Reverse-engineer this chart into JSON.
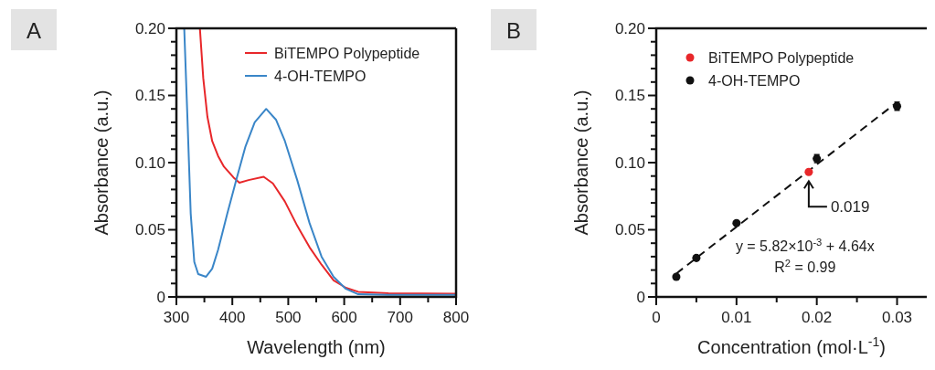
{
  "chart_data": [
    {
      "type": "line",
      "title": "A",
      "xlabel": "Wavelength (nm)",
      "ylabel": "Absorbance (a.u.)",
      "xlim": [
        300,
        800
      ],
      "ylim": [
        0,
        0.2
      ],
      "xticks": [
        300,
        {
          "value": 350,
          "label": null
        },
        400,
        {
          "value": 450,
          "label": null
        },
        500,
        {
          "value": 550,
          "label": null
        },
        600,
        {
          "value": 650,
          "label": null
        },
        700,
        {
          "value": 750,
          "label": null
        },
        800
      ],
      "yticks": [
        0,
        {
          "value": 0.01,
          "label": null
        },
        {
          "value": 0.02,
          "label": null
        },
        {
          "value": 0.03,
          "label": null
        },
        {
          "value": 0.04,
          "label": null
        },
        0.05,
        {
          "value": 0.06,
          "label": null
        },
        {
          "value": 0.07,
          "label": null
        },
        {
          "value": 0.08,
          "label": null
        },
        {
          "value": 0.09,
          "label": null
        },
        {
          "value": 0.1,
          "label": "0.10"
        },
        {
          "value": 0.11,
          "label": null
        },
        {
          "value": 0.12,
          "label": null
        },
        {
          "value": 0.13,
          "label": null
        },
        {
          "value": 0.14,
          "label": null
        },
        0.15,
        {
          "value": 0.16,
          "label": null
        },
        {
          "value": 0.17,
          "label": null
        },
        {
          "value": 0.18,
          "label": null
        },
        {
          "value": 0.19,
          "label": null
        },
        {
          "value": 0.2,
          "label": "0.20"
        }
      ],
      "legend": "top right",
      "grid": false,
      "series": [
        {
          "name": "BiTEMPO Polypeptide",
          "color": "#e8272a",
          "x": [
            342,
            348,
            355.5,
            364,
            374.5,
            385,
            402,
            412.6,
            429,
            456,
            472.5,
            494,
            516,
            538,
            559.5,
            581,
            603,
            625,
            679,
            800
          ],
          "values": [
            0.2,
            0.163,
            0.134,
            0.116,
            0.105,
            0.097,
            0.089,
            0.085,
            0.087,
            0.0895,
            0.0845,
            0.071,
            0.053,
            0.037,
            0.024,
            0.0124,
            0.0068,
            0.0038,
            0.0027,
            0.0023
          ]
        },
        {
          "name": "4-OH-TEMPO",
          "color": "#3a86c8",
          "x": [
            314,
            320,
            325.6,
            332,
            339,
            353,
            364,
            374.5,
            391,
            407,
            423.5,
            440,
            460.5,
            478,
            494,
            516,
            538,
            559.5,
            581,
            603,
            625,
            679,
            800
          ],
          "values": [
            0.2,
            0.13,
            0.062,
            0.026,
            0.017,
            0.015,
            0.021,
            0.035,
            0.062,
            0.087,
            0.112,
            0.13,
            0.14,
            0.132,
            0.116,
            0.087,
            0.055,
            0.03,
            0.015,
            0.006,
            0.002,
            0.0016,
            0.0016
          ]
        }
      ]
    },
    {
      "type": "scatter",
      "title": "B",
      "xlabel": "Concentration (mol·L$^{-1}$)",
      "ylabel": "Absorbance (a.u.)",
      "xlim": [
        0,
        0.0337
      ],
      "ylim": [
        0,
        0.2
      ],
      "xticks": [
        0,
        {
          "value": 0.005,
          "label": null
        },
        0.01,
        {
          "value": 0.015,
          "label": null
        },
        0.02,
        {
          "value": 0.025,
          "label": null
        },
        0.03
      ],
      "yticks": [
        0,
        {
          "value": 0.01,
          "label": null
        },
        {
          "value": 0.02,
          "label": null
        },
        {
          "value": 0.03,
          "label": null
        },
        {
          "value": 0.04,
          "label": null
        },
        0.05,
        {
          "value": 0.06,
          "label": null
        },
        {
          "value": 0.07,
          "label": null
        },
        {
          "value": 0.08,
          "label": null
        },
        {
          "value": 0.09,
          "label": null
        },
        {
          "value": 0.1,
          "label": "0.10"
        },
        {
          "value": 0.11,
          "label": null
        },
        {
          "value": 0.12,
          "label": null
        },
        {
          "value": 0.13,
          "label": null
        },
        {
          "value": 0.14,
          "label": null
        },
        0.15,
        {
          "value": 0.16,
          "label": null
        },
        {
          "value": 0.17,
          "label": null
        },
        {
          "value": 0.18,
          "label": null
        },
        {
          "value": 0.19,
          "label": null
        },
        {
          "value": 0.2,
          "label": "0.20"
        }
      ],
      "legend": "top left",
      "grid": false,
      "annotations": [
        {
          "text": "0.019",
          "x": 0.019,
          "y": 0.093
        },
        "y = 5.82×10$^{-3}$ + 4.64x",
        "R$^{2}$ = 0.99"
      ],
      "series": [
        {
          "type": "line",
          "color": "#111111",
          "line_style": "dashed",
          "x": [
            0.0025,
            0.03
          ],
          "values": [
            0.0174,
            0.145
          ]
        },
        {
          "name": "BiTEMPO Polypeptide",
          "color": "#e8272a",
          "marker": "circle",
          "x": [
            0.019
          ],
          "values": [
            0.093
          ]
        },
        {
          "name": "4-OH-TEMPO",
          "color": "#111111",
          "marker": "circle",
          "x": [
            0.0025,
            0.005,
            0.01,
            0.02,
            0.03
          ],
          "values": [
            0.015,
            0.029,
            0.055,
            0.103,
            0.142
          ],
          "errors": [
            null,
            null,
            null,
            0.003,
            0.003
          ]
        }
      ]
    }
  ]
}
